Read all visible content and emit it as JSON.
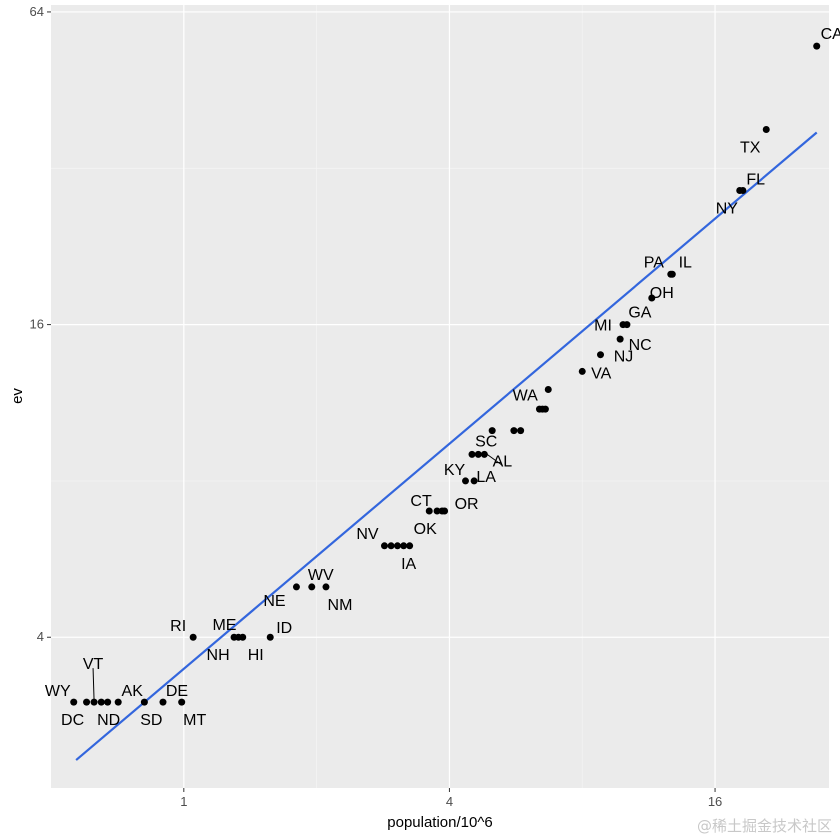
{
  "chart_data": {
    "type": "scatter",
    "xlabel": "population/10^6",
    "ylabel": "ev",
    "x_scale": "log2",
    "y_scale": "log2",
    "xlim": [
      0.5,
      29
    ],
    "ylim": [
      2.05,
      66
    ],
    "x_ticks": [
      1,
      4,
      16
    ],
    "y_ticks": [
      4,
      16,
      64
    ],
    "grid": true,
    "fit_line": {
      "x": [
        0.57,
        27.2
      ],
      "y": [
        2.32,
        37.5
      ],
      "color": "#3366dd"
    },
    "points": [
      {
        "label": "CA",
        "x": 27.2,
        "y": 55
      },
      {
        "label": "TX",
        "x": 20.9,
        "y": 38
      },
      {
        "label": "FL",
        "x": 18.2,
        "y": 29
      },
      {
        "label": "NY",
        "x": 18.5,
        "y": 29
      },
      {
        "label": "IL",
        "x": 12.8,
        "y": 20
      },
      {
        "label": "PA",
        "x": 12.7,
        "y": 20
      },
      {
        "label": "OH",
        "x": 11.5,
        "y": 18
      },
      {
        "label": "GA",
        "x": 10.1,
        "y": 16
      },
      {
        "label": "MI",
        "x": 9.9,
        "y": 16
      },
      {
        "label": "NC",
        "x": 9.75,
        "y": 15
      },
      {
        "label": "NJ",
        "x": 8.8,
        "y": 14
      },
      {
        "label": "VA",
        "x": 8.0,
        "y": 13
      },
      {
        "label": "WA",
        "x": 6.7,
        "y": 12
      },
      {
        "label": "",
        "x": 6.6,
        "y": 11
      },
      {
        "label": "",
        "x": 6.5,
        "y": 11
      },
      {
        "label": "",
        "x": 6.4,
        "y": 11
      },
      {
        "label": "",
        "x": 5.8,
        "y": 10
      },
      {
        "label": "",
        "x": 5.6,
        "y": 10
      },
      {
        "label": "SC",
        "x": 5.0,
        "y": 10
      },
      {
        "label": "",
        "x": 4.65,
        "y": 9
      },
      {
        "label": "",
        "x": 4.5,
        "y": 9
      },
      {
        "label": "AL",
        "x": 4.8,
        "y": 9
      },
      {
        "label": "KY",
        "x": 4.35,
        "y": 8
      },
      {
        "label": "LA",
        "x": 4.55,
        "y": 8
      },
      {
        "label": "CT",
        "x": 3.75,
        "y": 7
      },
      {
        "label": "",
        "x": 3.85,
        "y": 7
      },
      {
        "label": "OR",
        "x": 3.9,
        "y": 7
      },
      {
        "label": "OK",
        "x": 3.6,
        "y": 7
      },
      {
        "label": "NV",
        "x": 2.85,
        "y": 6
      },
      {
        "label": "",
        "x": 2.95,
        "y": 6
      },
      {
        "label": "",
        "x": 3.05,
        "y": 6
      },
      {
        "label": "",
        "x": 3.15,
        "y": 6
      },
      {
        "label": "IA",
        "x": 3.25,
        "y": 6
      },
      {
        "label": "WV",
        "x": 1.95,
        "y": 5
      },
      {
        "label": "NM",
        "x": 2.1,
        "y": 5
      },
      {
        "label": "NE",
        "x": 1.8,
        "y": 5
      },
      {
        "label": "RI",
        "x": 1.05,
        "y": 4
      },
      {
        "label": "ME",
        "x": 1.33,
        "y": 4
      },
      {
        "label": "NH",
        "x": 1.3,
        "y": 4
      },
      {
        "label": "HI",
        "x": 1.36,
        "y": 4
      },
      {
        "label": "ID",
        "x": 1.57,
        "y": 4
      },
      {
        "label": "WY",
        "x": 0.563,
        "y": 3
      },
      {
        "label": "DC",
        "x": 0.602,
        "y": 3
      },
      {
        "label": "VT",
        "x": 0.626,
        "y": 3
      },
      {
        "label": "",
        "x": 0.65,
        "y": 3
      },
      {
        "label": "ND",
        "x": 0.672,
        "y": 3
      },
      {
        "label": "AK",
        "x": 0.71,
        "y": 3
      },
      {
        "label": "SD",
        "x": 0.814,
        "y": 3
      },
      {
        "label": "DE",
        "x": 0.897,
        "y": 3
      },
      {
        "label": "MT",
        "x": 0.989,
        "y": 3
      }
    ]
  },
  "watermark": "@稀土掘金技术社区"
}
